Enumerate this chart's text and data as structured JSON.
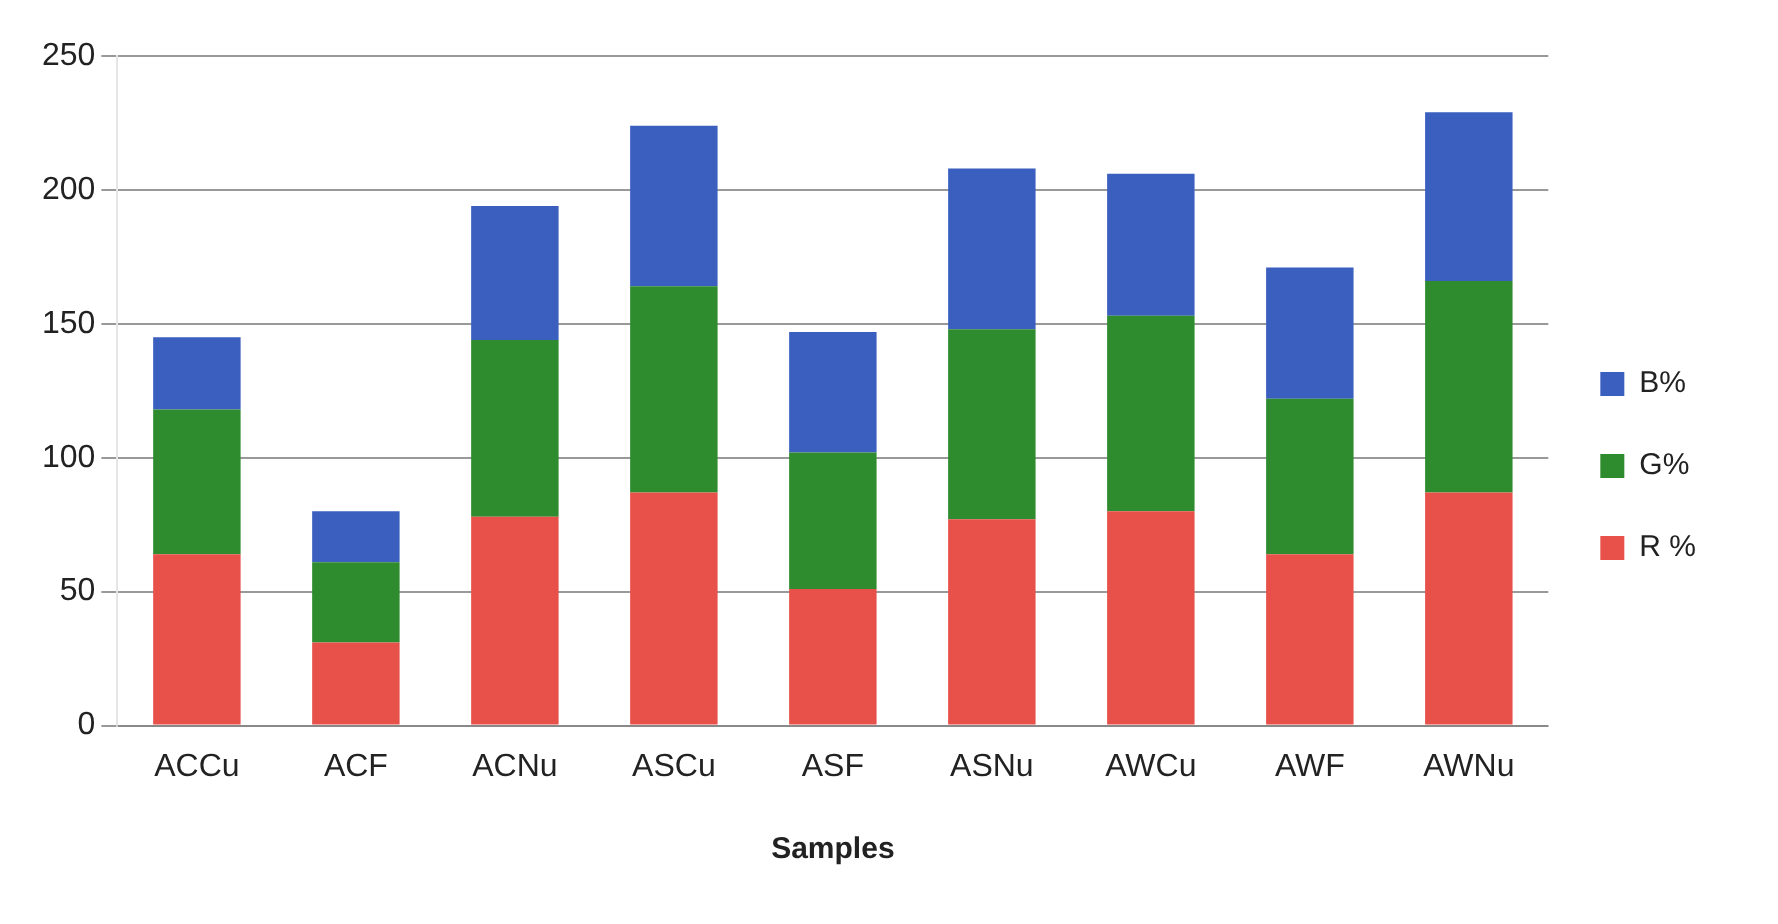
{
  "chart_data": {
    "type": "bar",
    "stacked": true,
    "xlabel": "Samples",
    "categories": [
      "ACCu",
      "ACF",
      "ACNu",
      "ASCu",
      "ASF",
      "ASNu",
      "AWCu",
      "AWF",
      "AWNu"
    ],
    "series": [
      {
        "name": "R %",
        "color": "#e8504a",
        "values": [
          64,
          31,
          78,
          87,
          51,
          77,
          80,
          64,
          87
        ]
      },
      {
        "name": "G%",
        "color": "#2e8b2e",
        "values": [
          54,
          30,
          66,
          77,
          51,
          71,
          73,
          58,
          79
        ]
      },
      {
        "name": "B%",
        "color": "#3a5fbf",
        "values": [
          27,
          19,
          50,
          60,
          45,
          60,
          53,
          49,
          63
        ]
      }
    ],
    "ylim": [
      0,
      250
    ],
    "yticks": [
      0,
      50,
      100,
      150,
      200,
      250
    ],
    "grid": "y",
    "legend": "right"
  }
}
